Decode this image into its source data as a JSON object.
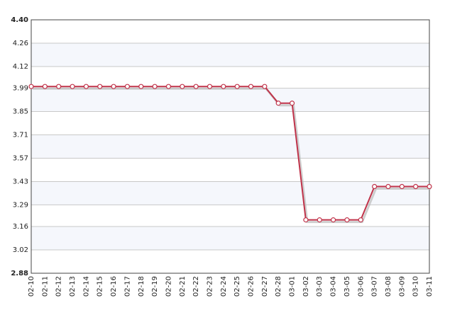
{
  "chart_data": {
    "type": "line",
    "categories": [
      "02-10",
      "02-11",
      "02-12",
      "02-13",
      "02-14",
      "02-15",
      "02-16",
      "02-17",
      "02-18",
      "02-19",
      "02-20",
      "02-21",
      "02-22",
      "02-23",
      "02-24",
      "02-25",
      "02-26",
      "02-27",
      "02-28",
      "03-01",
      "03-02",
      "03-03",
      "03-04",
      "03-05",
      "03-06",
      "03-07",
      "03-08",
      "03-09",
      "03-10",
      "03-11"
    ],
    "series": [
      {
        "color": "#c0334a",
        "values": [
          4.0,
          4.0,
          4.0,
          4.0,
          4.0,
          4.0,
          4.0,
          4.0,
          4.0,
          4.0,
          4.0,
          4.0,
          4.0,
          4.0,
          4.0,
          4.0,
          4.0,
          4.0,
          3.9,
          3.9,
          3.2,
          3.2,
          3.2,
          3.2,
          3.2,
          3.4,
          3.4,
          3.4,
          3.4,
          3.4
        ]
      }
    ],
    "ylim": [
      2.88,
      4.4
    ],
    "yticks": [
      2.88,
      3.02,
      3.16,
      3.29,
      3.43,
      3.57,
      3.71,
      3.85,
      3.99,
      4.12,
      4.26,
      {
        "value": 4.4,
        "label": "4.40"
      }
    ],
    "grid": true
  }
}
